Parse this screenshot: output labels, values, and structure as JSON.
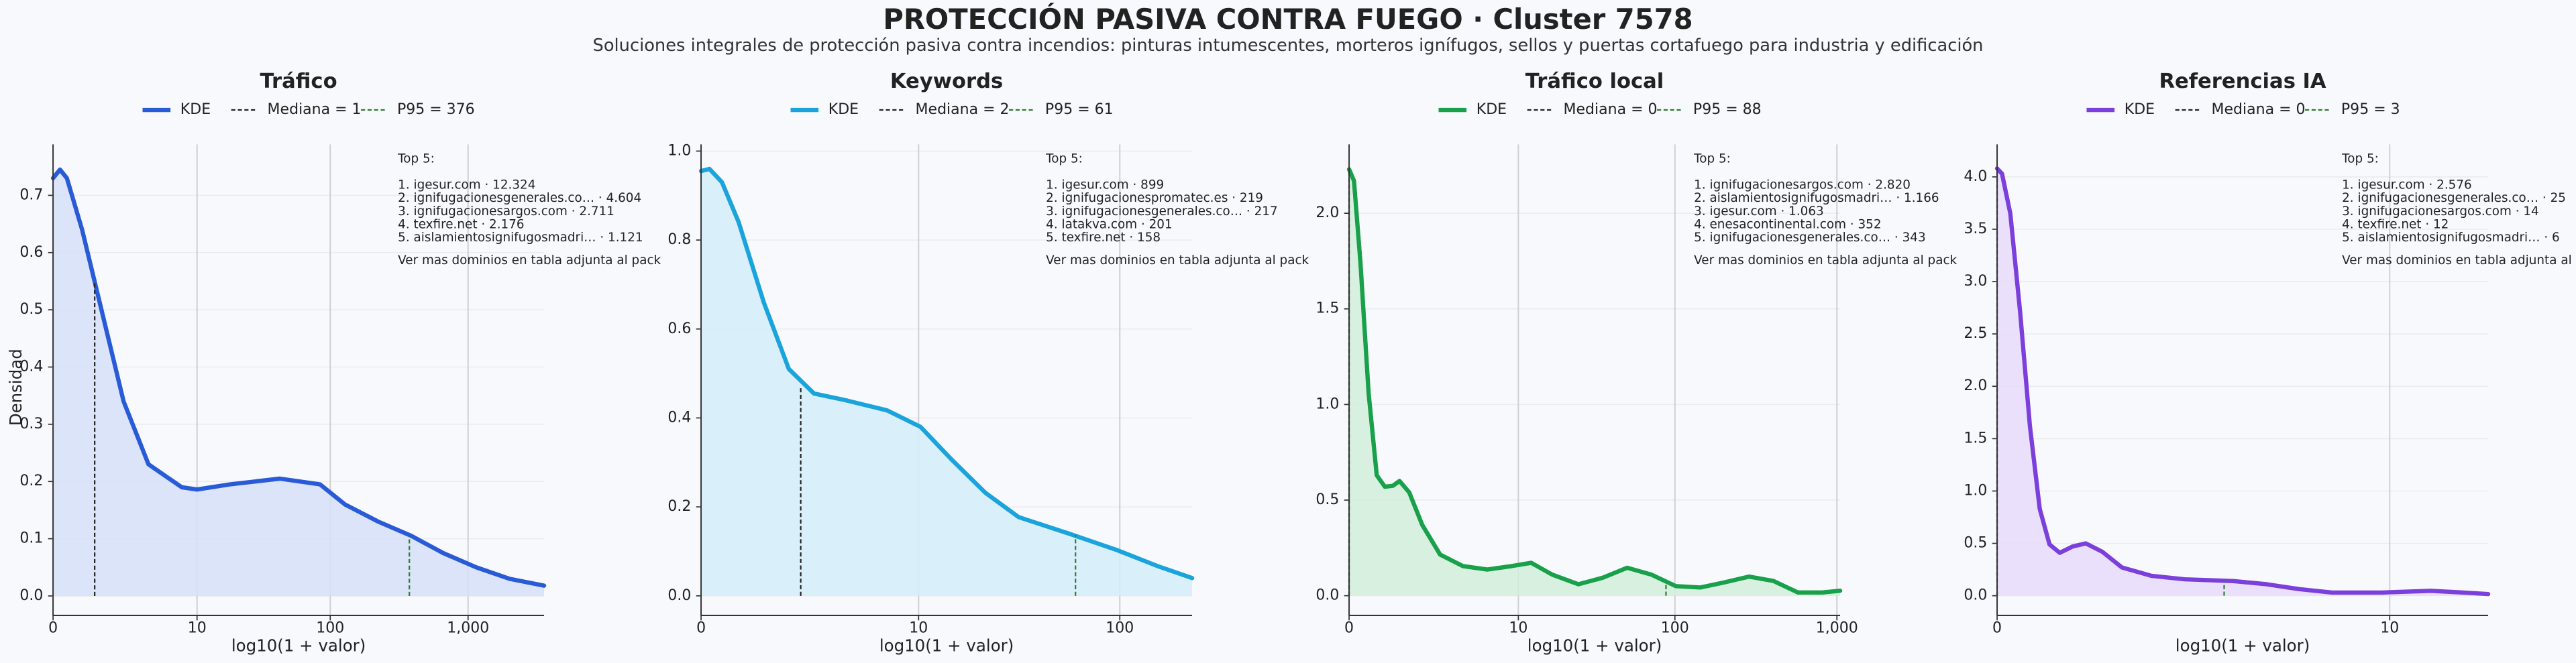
{
  "title": "PROTECCIÓN PASIVA CONTRA FUEGO · Cluster 7578",
  "subtitle": "Soluciones integrales de protección pasiva contra incendios: pinturas intumescentes, morteros ignífugos, sellos y puertas cortafuego para industria y edificación",
  "chart_data": [
    {
      "type": "line",
      "title": "Tráfico",
      "xlabel": "log10(1 + valor)",
      "ylabel": "Densidad",
      "x": [
        0,
        0.05,
        0.1,
        0.21,
        0.3,
        0.51,
        0.69,
        0.93,
        1.04,
        1.28,
        1.64,
        1.93,
        2.11,
        2.35,
        2.59,
        2.82,
        3.06,
        3.3,
        3.55
      ],
      "series": [
        {
          "name": "KDE",
          "color": "#2a5bd7",
          "fill": "#d6e0f8",
          "values": [
            0.73,
            0.745,
            0.73,
            0.64,
            0.55,
            0.34,
            0.23,
            0.19,
            0.186,
            0.195,
            0.205,
            0.195,
            0.16,
            0.13,
            0.105,
            0.075,
            0.05,
            0.03,
            0.018
          ]
        }
      ],
      "markers": [
        {
          "name": "Mediana = 1",
          "x": 0.301,
          "y": 0.55,
          "color": "#222222"
        },
        {
          "name": "P95 = 376",
          "x": 2.576,
          "y": 0.105,
          "color": "#2e7d32"
        }
      ],
      "annotation": {
        "heading": "Top 5:",
        "lines": [
          "1. igesur.com · 12.324",
          "2. ignifugacionesgenerales.co… · 4.604",
          "3. ignifugacionesargos.com · 2.711",
          "4. texfire.net · 2.176",
          "5. aislamientosignifugosmadri… · 1.121"
        ],
        "footer": "Ver mas dominios en tabla adjunta al pack"
      },
      "xlim": [
        0,
        3.55
      ],
      "ylim": [
        -0.034,
        0.789
      ],
      "xticks": [
        0,
        {
          "value": 1.041,
          "label": "10"
        },
        {
          "value": 2.004,
          "label": "100"
        },
        {
          "value": 3.0004,
          "label": "1,000"
        }
      ],
      "yticks": [
        {
          "value": 0,
          "label": "0.0"
        },
        0.1,
        0.2,
        0.3,
        0.4,
        0.5,
        0.6,
        0.7
      ],
      "grid": true
    },
    {
      "type": "line",
      "title": "Keywords",
      "xlabel": "log10(1 + valor)",
      "x": [
        0,
        0.04,
        0.1,
        0.18,
        0.3,
        0.42,
        0.54,
        0.69,
        0.89,
        1.05,
        1.2,
        1.36,
        1.52,
        1.76,
        1.99,
        2.19,
        2.35
      ],
      "series": [
        {
          "name": "KDE",
          "color": "#1ba3dc",
          "fill": "#d3eefa",
          "values": [
            0.955,
            0.96,
            0.93,
            0.84,
            0.66,
            0.51,
            0.455,
            0.44,
            0.417,
            0.38,
            0.306,
            0.232,
            0.177,
            0.14,
            0.103,
            0.066,
            0.04
          ]
        }
      ],
      "markers": [
        {
          "name": "Mediana = 2",
          "x": 0.477,
          "y": 0.47,
          "color": "#222222"
        },
        {
          "name": "P95 = 61",
          "x": 1.792,
          "y": 0.137,
          "color": "#2e7d32"
        }
      ],
      "annotation": {
        "heading": "Top 5:",
        "lines": [
          "1. igesur.com · 899",
          "2. ignifugacionespromatec.es · 219",
          "3. ignifugacionesgenerales.co… · 217",
          "4. latakva.com · 201",
          "5. texfire.net · 158"
        ],
        "footer": "Ver mas dominios en tabla adjunta al pack"
      },
      "xlim": [
        0,
        2.35
      ],
      "ylim": [
        -0.044,
        1.015
      ],
      "xticks": [
        0,
        {
          "value": 1.041,
          "label": "10"
        },
        {
          "value": 2.004,
          "label": "100"
        }
      ],
      "yticks": [
        {
          "value": 0,
          "label": "0.0"
        },
        0.2,
        0.4,
        0.6,
        0.8,
        {
          "value": 1,
          "label": "1.0"
        }
      ],
      "grid": true
    },
    {
      "type": "line",
      "title": "Tráfico local",
      "xlabel": "log10(1 + valor)",
      "x": [
        0,
        0.03,
        0.07,
        0.12,
        0.17,
        0.22,
        0.27,
        0.31,
        0.37,
        0.45,
        0.56,
        0.7,
        0.85,
        1.0,
        1.12,
        1.25,
        1.41,
        1.56,
        1.71,
        1.86,
        2.01,
        2.16,
        2.31,
        2.46,
        2.61,
        2.76,
        2.91,
        3.02
      ],
      "series": [
        {
          "name": "KDE",
          "color": "#18a04a",
          "fill": "#d2eedb",
          "values": [
            2.23,
            2.17,
            1.74,
            1.06,
            0.63,
            0.57,
            0.575,
            0.6,
            0.54,
            0.37,
            0.215,
            0.155,
            0.137,
            0.155,
            0.172,
            0.11,
            0.06,
            0.094,
            0.146,
            0.11,
            0.05,
            0.043,
            0.07,
            0.1,
            0.077,
            0.017,
            0.017,
            0.026
          ]
        }
      ],
      "markers": [
        {
          "name": "Mediana = 0",
          "x": 0,
          "y": 2.23,
          "color": "#222222"
        },
        {
          "name": "P95 = 88",
          "x": 1.949,
          "y": 0.07,
          "color": "#2e7d32"
        }
      ],
      "annotation": {
        "heading": "Top 5:",
        "lines": [
          "1. ignifugacionesargos.com · 2.820",
          "2. aislamientosignifugosmadri… · 1.166",
          "3. igesur.com · 1.063",
          "4. enesacontinental.com · 352",
          "5. ignifugacionesgenerales.co… · 343"
        ],
        "footer": "Ver mas dominios en tabla adjunta al pack"
      },
      "xlim": [
        0,
        3.02
      ],
      "ylim": [
        -0.103,
        2.36
      ],
      "xticks": [
        0,
        {
          "value": 1.041,
          "label": "10"
        },
        {
          "value": 2.004,
          "label": "100"
        },
        {
          "value": 3.0004,
          "label": "1,000"
        }
      ],
      "yticks": [
        {
          "value": 0,
          "label": "0.0"
        },
        0.5,
        {
          "value": 1,
          "label": "1.0"
        },
        1.5,
        {
          "value": 2,
          "label": "2.0"
        }
      ],
      "grid": true
    },
    {
      "type": "line",
      "title": "Referencias IA",
      "xlabel": "log10(1 + valor)",
      "x": [
        0,
        0.013,
        0.035,
        0.061,
        0.087,
        0.113,
        0.139,
        0.166,
        0.2,
        0.235,
        0.279,
        0.331,
        0.409,
        0.497,
        0.627,
        0.714,
        0.801,
        0.888,
        1.019,
        1.15,
        1.237,
        1.302
      ],
      "series": [
        {
          "name": "KDE",
          "color": "#7b3fdc",
          "fill": "#e8dcfa",
          "values": [
            4.08,
            4.03,
            3.65,
            2.71,
            1.62,
            0.83,
            0.49,
            0.41,
            0.47,
            0.5,
            0.42,
            0.27,
            0.19,
            0.157,
            0.14,
            0.11,
            0.063,
            0.03,
            0.03,
            0.047,
            0.03,
            0.016
          ]
        }
      ],
      "markers": [
        {
          "name": "Mediana = 0",
          "x": 0,
          "y": 4.08,
          "color": "#222222"
        },
        {
          "name": "P95 = 3",
          "x": 0.602,
          "y": 0.14,
          "color": "#2e7d32"
        }
      ],
      "annotation": {
        "heading": "Top 5:",
        "lines": [
          "1. igesur.com · 2.576",
          "2. ignifugacionesgenerales.co… · 25",
          "3. ignifugacionesargos.com · 14",
          "4. texfire.net · 12",
          "5. aislamientosignifugosmadri… · 6"
        ],
        "footer": "Ver mas dominios en tabla adjunta al pack"
      },
      "xlim": [
        0,
        1.302
      ],
      "ylim": [
        -0.188,
        4.31
      ],
      "xticks": [
        0,
        {
          "value": 1.041,
          "label": "10"
        }
      ],
      "yticks": [
        {
          "value": 0,
          "label": "0.0"
        },
        0.5,
        {
          "value": 1,
          "label": "1.0"
        },
        1.5,
        {
          "value": 2,
          "label": "2.0"
        },
        2.5,
        {
          "value": 3,
          "label": "3.0"
        },
        3.5,
        {
          "value": 4,
          "label": "4.0"
        }
      ],
      "grid": true
    }
  ]
}
